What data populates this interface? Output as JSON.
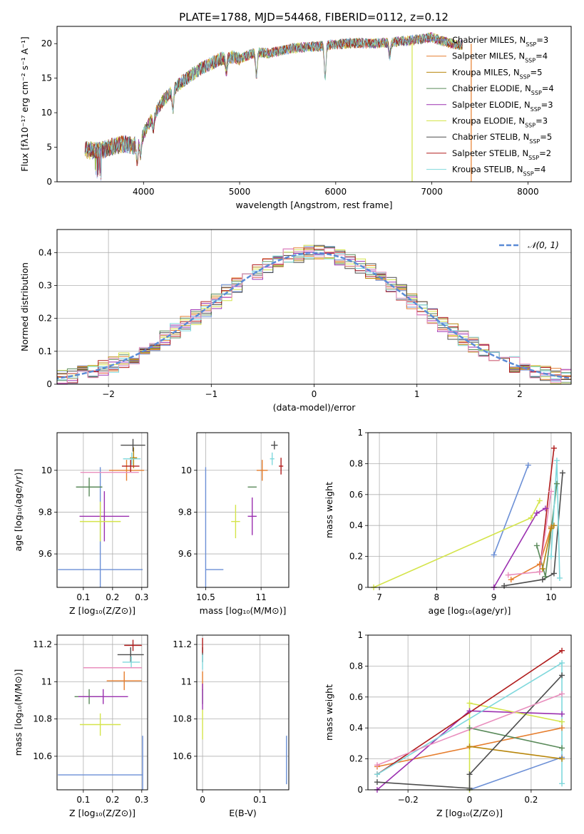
{
  "figure": {
    "title": "PLATE=1788, MJD=54468, FIBERID=0112, z=0.12"
  },
  "colors": {
    "Chabrier MILES": "#6b8fd6",
    "Salpeter MILES": "#e67e2e",
    "Kroupa MILES": "#b8860b",
    "Chabrier ELODIE": "#5a8a5a",
    "Salpeter ELODIE": "#9b30b0",
    "Kroupa ELODIE": "#d4e44a",
    "Chabrier STELIB": "#4d4d4d",
    "Salpeter STELIB": "#b01c1c",
    "Kroupa STELIB": "#7fd8dc"
  },
  "chart_data": [
    {
      "id": "spectrum",
      "type": "line",
      "xlabel": "wavelength [Angstrom, rest frame]",
      "ylabel": "Flux [fλ10⁻¹⁷ erg cm⁻² s⁻¹ A⁻¹]",
      "xlim": [
        3100,
        8450
      ],
      "ylim": [
        0,
        22.5
      ],
      "xticks": [
        4000,
        5000,
        6000,
        7000,
        8000
      ],
      "yticks": [
        0,
        5,
        10,
        15,
        20
      ],
      "grid": false,
      "legend_position": "upper-right",
      "legend": [
        "Chabrier MILES, N_SSP=3",
        "Salpeter MILES, N_SSP=4",
        "Kroupa MILES, N_SSP=5",
        "Chabrier ELODIE, N_SSP=4",
        "Salpeter ELODIE, N_SSP=3",
        "Kroupa ELODIE, N_SSP=3",
        "Chabrier STELIB, N_SSP=5",
        "Salpeter STELIB, N_SSP=2",
        "Kroupa STELIB, N_SSP=4"
      ],
      "continuum": {
        "x": [
          3390,
          3500,
          3600,
          3700,
          3800,
          3900,
          4000,
          4100,
          4200,
          4300,
          4400,
          4500,
          4600,
          4700,
          4800,
          4900,
          5000,
          5100,
          5200,
          5300,
          5400,
          5500,
          5600,
          5800,
          6000,
          6200,
          6400,
          6600,
          6800,
          7000,
          7100,
          7200,
          7300
        ],
        "y": [
          4.6,
          4.5,
          4.7,
          5.2,
          5.5,
          5.2,
          7.0,
          9.4,
          11.7,
          13.2,
          14.5,
          15.5,
          16.4,
          17.1,
          17.8,
          18.1,
          17.8,
          18.4,
          18.8,
          18.6,
          18.9,
          19.2,
          19.4,
          19.6,
          19.9,
          20.1,
          20.0,
          20.2,
          20.5,
          20.9,
          20.4,
          20.0,
          19.8
        ]
      },
      "absorption_lines": [
        {
          "x": 3934,
          "depth": 0.55
        },
        {
          "x": 3969,
          "depth": 0.45
        },
        {
          "x": 4102,
          "depth": 0.18
        },
        {
          "x": 4305,
          "depth": 0.22
        },
        {
          "x": 4861,
          "depth": 0.12
        },
        {
          "x": 5175,
          "depth": 0.18
        },
        {
          "x": 5890,
          "depth": 0.24
        },
        {
          "x": 6563,
          "depth": 0.1
        }
      ],
      "spikes": [
        {
          "x": 6795,
          "y": 0,
          "series": "Kroupa ELODIE"
        },
        {
          "x": 7410,
          "y": 0,
          "series": "Salpeter MILES"
        }
      ]
    },
    {
      "id": "residuals",
      "type": "histogram",
      "xlabel": "(data-model)/error",
      "ylabel": "Normed distribution",
      "xlim": [
        -2.5,
        2.5
      ],
      "ylim": [
        0,
        0.47
      ],
      "xticks": [
        -2,
        -1,
        0,
        1,
        2
      ],
      "yticks": [
        0.0,
        0.1,
        0.2,
        0.3,
        0.4
      ],
      "grid": true,
      "bin_width": 0.1,
      "legend_position": "upper-right",
      "legend": [
        "𝒩(0, 1)"
      ],
      "gaussian": {
        "mean": 0,
        "sigma": 1
      }
    },
    {
      "id": "age-vs-z",
      "type": "errorbar",
      "xlabel": "Z [log₁₀(Z/Z⊙)]",
      "ylabel": "age  [log₁₀(age/yr)]",
      "xlim": [
        0.01,
        0.32
      ],
      "ylim": [
        9.44,
        10.18
      ],
      "xticks": [
        0.1,
        0.2,
        0.3
      ],
      "yticks": [
        9.6,
        9.8,
        10.0
      ],
      "grid": true,
      "points": [
        {
          "series": "Chabrier MILES",
          "x": 0.158,
          "xerr": 0.145,
          "y": 9.525,
          "yerr": 0.49
        },
        {
          "series": "Salpeter MILES",
          "x": 0.248,
          "xerr": 0.06,
          "y": 10.0,
          "yerr": 0.05
        },
        {
          "series": "Kroupa MILES",
          "x": 0.272,
          "xerr": 0.012,
          "y": 10.06,
          "yerr": 0.05
        },
        {
          "series": "Chabrier ELODIE",
          "x": 0.12,
          "xerr": 0.045,
          "y": 9.92,
          "yerr": 0.045
        },
        {
          "series": "Salpeter ELODIE",
          "x": 0.172,
          "xerr": 0.085,
          "y": 9.78,
          "yerr": 0.12
        },
        {
          "series": "Kroupa ELODIE",
          "x": 0.158,
          "xerr": 0.07,
          "y": 9.755,
          "yerr": 0.095
        },
        {
          "series": "Chabrier STELIB",
          "x": 0.27,
          "xerr": 0.042,
          "y": 10.12,
          "yerr": 0.03
        },
        {
          "series": "Salpeter STELIB",
          "x": 0.262,
          "xerr": 0.03,
          "y": 10.02,
          "yerr": 0.03
        },
        {
          "series": "Kroupa STELIB",
          "x": 0.266,
          "xerr": 0.03,
          "y": 10.055,
          "yerr": 0.03
        }
      ],
      "extra": [
        {
          "series": "Salpeter ELODIE",
          "x": 0.19,
          "xerr": 0.1,
          "y": 9.99,
          "yerr": 0.0,
          "color": "#e98fbe"
        }
      ]
    },
    {
      "id": "age-vs-mass",
      "type": "errorbar",
      "xlabel": "mass [log₁₀(M/M⊙)]",
      "ylabel": "",
      "xlim": [
        10.42,
        11.25
      ],
      "ylim": [
        9.44,
        10.18
      ],
      "xticks": [
        10.5,
        11.0
      ],
      "yticks": [
        9.6,
        9.8,
        10.0
      ],
      "grid": true,
      "points": [
        {
          "series": "Chabrier MILES",
          "x": 10.5,
          "xerr": 0.0,
          "y": 9.525,
          "yerr": 0.49
        },
        {
          "series": "Chabrier MILES",
          "x": 10.58,
          "xerr": 0.08,
          "y": 9.525,
          "yerr": 0.0
        },
        {
          "series": "Salpeter MILES",
          "x": 11.01,
          "xerr": 0.05,
          "y": 10.0,
          "yerr": 0.05
        },
        {
          "series": "Chabrier ELODIE",
          "x": 10.92,
          "xerr": 0.04,
          "y": 9.92,
          "yerr": 0.0
        },
        {
          "series": "Salpeter ELODIE",
          "x": 10.92,
          "xerr": 0.04,
          "y": 9.78,
          "yerr": 0.09
        },
        {
          "series": "Kroupa ELODIE",
          "x": 10.77,
          "xerr": 0.04,
          "y": 9.755,
          "yerr": 0.08
        },
        {
          "series": "Chabrier STELIB",
          "x": 11.12,
          "xerr": 0.03,
          "y": 10.12,
          "yerr": 0.02
        },
        {
          "series": "Salpeter STELIB",
          "x": 11.18,
          "xerr": 0.02,
          "y": 10.02,
          "yerr": 0.04
        },
        {
          "series": "Kroupa STELIB",
          "x": 11.1,
          "xerr": 0.02,
          "y": 10.055,
          "yerr": 0.03
        }
      ]
    },
    {
      "id": "weight-vs-age",
      "type": "line",
      "xlabel": "age  [log₁₀(age/yr)]",
      "ylabel": "mass weight",
      "xlim": [
        6.8,
        10.35
      ],
      "ylim": [
        0,
        1.0
      ],
      "xticks": [
        7,
        8,
        9,
        10
      ],
      "yticks": [
        0.0,
        0.2,
        0.4,
        0.6,
        0.8,
        1.0
      ],
      "grid": true,
      "series": [
        {
          "name": "Chabrier MILES",
          "x": [
            9.0,
            9.6
          ],
          "y": [
            0.21,
            0.79
          ]
        },
        {
          "name": "Salpeter MILES",
          "x": [
            9.3,
            9.8,
            10.0
          ],
          "y": [
            0.05,
            0.15,
            0.39
          ]
        },
        {
          "name": "Kroupa MILES",
          "x": [
            9.85,
            10.0,
            10.05
          ],
          "y": [
            0.12,
            0.38,
            0.4
          ]
        },
        {
          "name": "Chabrier ELODIE",
          "x": [
            9.75,
            9.9,
            10.1
          ],
          "y": [
            0.27,
            0.07,
            0.67
          ]
        },
        {
          "name": "Salpeter ELODIE",
          "x": [
            9.0,
            9.75,
            9.9
          ],
          "y": [
            0.0,
            0.48,
            0.51
          ]
        },
        {
          "name": "Kroupa ELODIE",
          "x": [
            6.9,
            9.65,
            9.8
          ],
          "y": [
            0.0,
            0.45,
            0.56
          ]
        },
        {
          "name": "Chabrier STELIB",
          "x": [
            9.18,
            9.85,
            10.05,
            10.2
          ],
          "y": [
            0.01,
            0.05,
            0.09,
            0.74
          ]
        },
        {
          "name": "Salpeter STELIB",
          "x": [
            9.8,
            10.05
          ],
          "y": [
            0.1,
            0.9
          ]
        },
        {
          "name": "Kroupa STELIB",
          "x": [
            10.0,
            10.1,
            10.15
          ],
          "y": [
            0.2,
            0.82,
            0.06
          ]
        },
        {
          "name": "Salpeter ELODIE",
          "x": [
            9.25,
            9.8,
            10.0
          ],
          "y": [
            0.08,
            0.1,
            0.62
          ],
          "color": "#e98fbe"
        }
      ]
    },
    {
      "id": "mass-vs-z",
      "type": "errorbar",
      "xlabel": "Z [log₁₀(Z/Z⊙)]",
      "ylabel": "mass [log₁₀(M/M⊙)]",
      "xlim": [
        0.01,
        0.32
      ],
      "ylim": [
        10.42,
        11.25
      ],
      "xticks": [
        0.1,
        0.2,
        0.3
      ],
      "yticks": [
        10.6,
        10.8,
        11.0,
        11.2
      ],
      "grid": true,
      "points": [
        {
          "series": "Chabrier MILES",
          "x": 0.158,
          "xerr": 0.145,
          "y": 10.5,
          "yerr": 0.0
        },
        {
          "series": "Chabrier MILES",
          "x": 0.303,
          "xerr": 0.0,
          "y": 10.5,
          "yerr": 0.21
        },
        {
          "series": "Salpeter MILES",
          "x": 0.24,
          "xerr": 0.06,
          "y": 11.005,
          "yerr": 0.05
        },
        {
          "series": "Chabrier ELODIE",
          "x": 0.12,
          "xerr": 0.05,
          "y": 10.92,
          "yerr": 0.04
        },
        {
          "series": "Salpeter ELODIE",
          "x": 0.168,
          "xerr": 0.085,
          "y": 10.92,
          "yerr": 0.04
        },
        {
          "series": "Kroupa ELODIE",
          "x": 0.158,
          "xerr": 0.07,
          "y": 10.77,
          "yerr": 0.06
        },
        {
          "series": "Chabrier STELIB",
          "x": 0.262,
          "xerr": 0.045,
          "y": 11.145,
          "yerr": 0.04
        },
        {
          "series": "Salpeter STELIB",
          "x": 0.27,
          "xerr": 0.03,
          "y": 11.195,
          "yerr": 0.03
        },
        {
          "series": "Kroupa STELIB",
          "x": 0.264,
          "xerr": 0.03,
          "y": 11.105,
          "yerr": 0.03
        }
      ],
      "extra": [
        {
          "series": "Salpeter ELODIE",
          "x": 0.2,
          "xerr": 0.1,
          "y": 11.075,
          "yerr": 0.0,
          "color": "#e98fbe"
        }
      ]
    },
    {
      "id": "mass-vs-ebv",
      "type": "errorbar",
      "xlabel": "E(B-V)",
      "ylabel": "",
      "xlim": [
        -0.01,
        0.15
      ],
      "ylim": [
        10.42,
        11.25
      ],
      "xticks": [
        0.0,
        0.1
      ],
      "yticks": [
        10.6,
        10.8,
        11.0,
        11.2
      ],
      "grid": true,
      "points": [
        {
          "series": "Chabrier MILES",
          "x": 0.146,
          "xerr": 0.0,
          "y": 10.58,
          "yerr": 0.13
        },
        {
          "series": "Salpeter MILES",
          "x": 0.0,
          "xerr": 0.0,
          "y": 11.005,
          "yerr": 0.05
        },
        {
          "series": "Chabrier ELODIE",
          "x": 0.0,
          "xerr": 0.0,
          "y": 10.92,
          "yerr": 0.04
        },
        {
          "series": "Salpeter ELODIE",
          "x": 0.0,
          "xerr": 0.0,
          "y": 10.92,
          "yerr": 0.07
        },
        {
          "series": "Kroupa ELODIE",
          "x": 0.0,
          "xerr": 0.0,
          "y": 10.77,
          "yerr": 0.08
        },
        {
          "series": "Chabrier STELIB",
          "x": 0.0,
          "xerr": 0.0,
          "y": 11.145,
          "yerr": 0.04
        },
        {
          "series": "Salpeter STELIB",
          "x": 0.0,
          "xerr": 0.0,
          "y": 11.195,
          "yerr": 0.04
        },
        {
          "series": "Kroupa STELIB",
          "x": 0.0,
          "xerr": 0.0,
          "y": 11.105,
          "yerr": 0.04
        }
      ]
    },
    {
      "id": "weight-vs-z",
      "type": "line",
      "xlabel": "Z [log₁₀(Z/Z⊙)]",
      "ylabel": "mass weight",
      "xlim": [
        -0.33,
        0.33
      ],
      "ylim": [
        0,
        1.0
      ],
      "xticks": [
        -0.2,
        0.0,
        0.2
      ],
      "yticks": [
        0.0,
        0.2,
        0.4,
        0.6,
        0.8,
        1.0
      ],
      "grid": true,
      "series": [
        {
          "name": "Chabrier MILES",
          "x": [
            0.0,
            0.3
          ],
          "y": [
            0.0,
            0.21
          ]
        },
        {
          "name": "Salpeter MILES",
          "x": [
            -0.3,
            0.3
          ],
          "y": [
            0.15,
            0.4
          ]
        },
        {
          "name": "Kroupa MILES",
          "x": [
            0.0,
            0.3
          ],
          "y": [
            0.28,
            0.2
          ]
        },
        {
          "name": "Chabrier ELODIE",
          "x": [
            0.0,
            0.3
          ],
          "y": [
            0.4,
            0.27
          ]
        },
        {
          "name": "Salpeter ELODIE",
          "x": [
            -0.3,
            0.0,
            0.3
          ],
          "y": [
            0.0,
            0.51,
            0.49
          ]
        },
        {
          "name": "Kroupa ELODIE",
          "x": [
            0.0,
            0.0,
            0.3
          ],
          "y": [
            0.0,
            0.56,
            0.44
          ]
        },
        {
          "name": "Chabrier STELIB",
          "x": [
            -0.3,
            0.0,
            0.0,
            0.3
          ],
          "y": [
            0.05,
            0.01,
            0.1,
            0.74
          ]
        },
        {
          "name": "Salpeter STELIB",
          "x": [
            -0.3,
            0.3
          ],
          "y": [
            0.1,
            0.9
          ]
        },
        {
          "name": "Kroupa STELIB",
          "x": [
            -0.3,
            0.3,
            0.3
          ],
          "y": [
            0.1,
            0.82,
            0.04
          ]
        },
        {
          "name": "Salpeter ELODIE",
          "x": [
            -0.3,
            0.3
          ],
          "y": [
            0.16,
            0.62
          ],
          "color": "#e98fbe"
        }
      ]
    }
  ]
}
